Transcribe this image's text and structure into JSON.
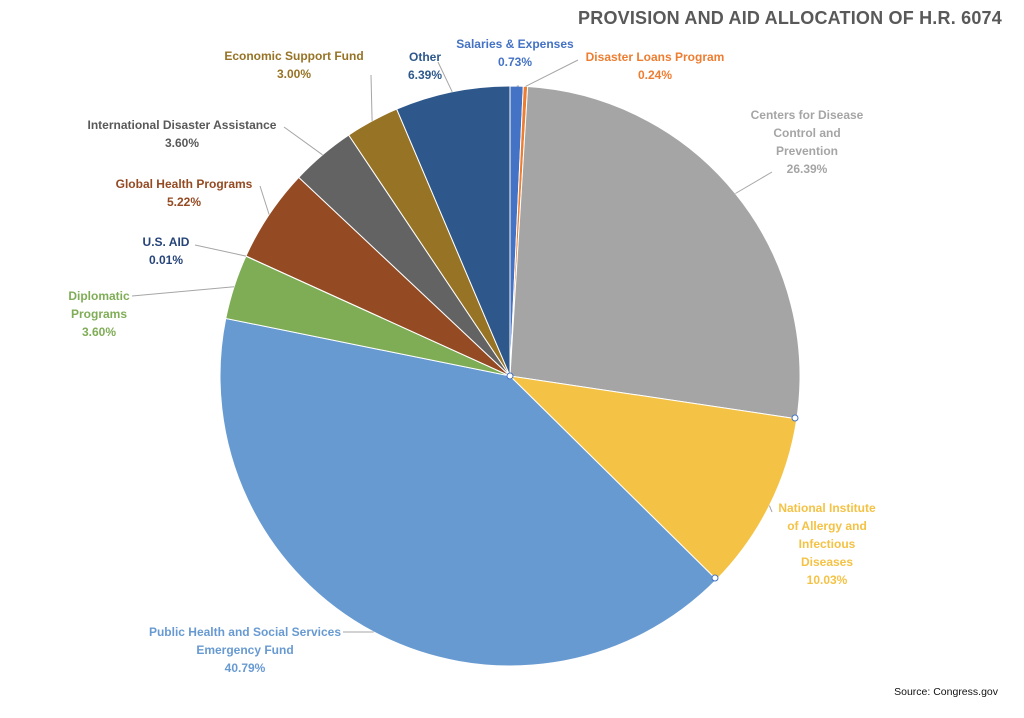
{
  "chart_data": {
    "type": "pie",
    "title": "PROVISION AND AID ALLOCATION OF H.R. 6074",
    "source": "Source: Congress.gov",
    "slices": [
      {
        "lines": [
          "Salaries & Expenses"
        ],
        "value": 0.73,
        "pct": "0.73%",
        "color": "#4472c4",
        "label_color": "#4472c4"
      },
      {
        "lines": [
          "Disaster Loans Program"
        ],
        "value": 0.24,
        "pct": "0.24%",
        "color": "#ed7d31",
        "label_color": "#ed7d31"
      },
      {
        "lines": [
          "Centers for Disease",
          "Control and",
          "Prevention"
        ],
        "value": 26.39,
        "pct": "26.39%",
        "color": "#a5a5a5",
        "label_color": "#a5a5a5"
      },
      {
        "lines": [
          "National Institute",
          "of Allergy and",
          "Infectious",
          "Diseases"
        ],
        "value": 10.03,
        "pct": "10.03%",
        "color": "#f4c244",
        "label_color": "#f4c244"
      },
      {
        "lines": [
          "Public Health and Social Services",
          "Emergency Fund"
        ],
        "value": 40.79,
        "pct": "40.79%",
        "color": "#689ad2",
        "label_color": "#689ad2"
      },
      {
        "lines": [
          "Diplomatic",
          "Programs"
        ],
        "value": 3.6,
        "pct": "3.60%",
        "color": "#7fad56",
        "label_color": "#7fad56"
      },
      {
        "lines": [
          "U.S. AID"
        ],
        "value": 0.01,
        "pct": "0.01%",
        "color": "#264478",
        "label_color": "#264478"
      },
      {
        "lines": [
          "Global Health Programs"
        ],
        "value": 5.22,
        "pct": "5.22%",
        "color": "#944a22",
        "label_color": "#944a22"
      },
      {
        "lines": [
          "International Disaster Assistance"
        ],
        "value": 3.6,
        "pct": "3.60%",
        "color": "#636363",
        "label_color": "#595959"
      },
      {
        "lines": [
          "Economic Support Fund"
        ],
        "value": 3.0,
        "pct": "3.00%",
        "color": "#967325",
        "label_color": "#967325"
      },
      {
        "lines": [
          "Other"
        ],
        "value": 6.39,
        "pct": "6.39%",
        "color": "#2e588b",
        "label_color": "#2e588b"
      }
    ]
  }
}
